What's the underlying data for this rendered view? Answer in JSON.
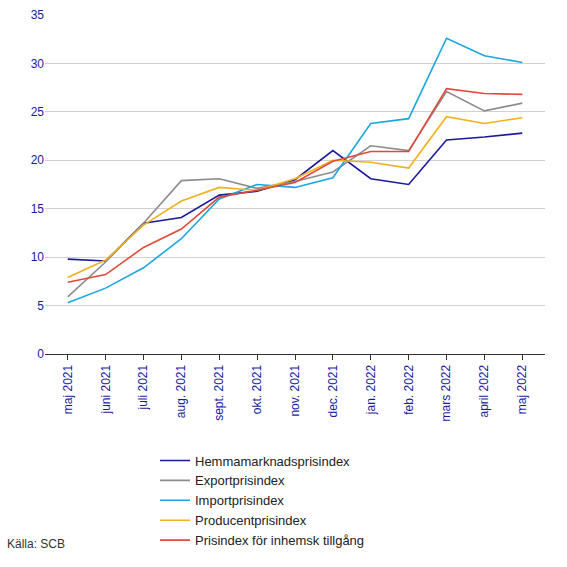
{
  "chart_data": {
    "type": "line",
    "categories": [
      "maj 2021",
      "juni 2021",
      "juli 2021",
      "aug. 2021",
      "sept. 2021",
      "okt. 2021",
      "nov. 2021",
      "dec. 2021",
      "jan. 2022",
      "feb. 2022",
      "mars 2022",
      "april 2022",
      "maj 2022"
    ],
    "series": [
      {
        "name": "Hemmamarknadsprisindex",
        "color": "#1a1a9e",
        "values": [
          9.8,
          9.6,
          13.5,
          14.1,
          16.4,
          16.8,
          18.0,
          21.0,
          18.1,
          17.5,
          22.1,
          22.4,
          22.8
        ]
      },
      {
        "name": "Exportprisindex",
        "color": "#8c8c8c",
        "values": [
          5.9,
          9.5,
          13.5,
          17.9,
          18.1,
          17.1,
          17.8,
          18.8,
          21.5,
          21.0,
          27.1,
          25.1,
          25.9
        ]
      },
      {
        "name": "Importprisindex",
        "color": "#1ba6e0",
        "values": [
          5.3,
          6.8,
          8.9,
          11.9,
          16.0,
          17.5,
          17.2,
          18.2,
          23.8,
          24.3,
          32.6,
          30.8,
          30.1
        ]
      },
      {
        "name": "Producentprisindex",
        "color": "#f2b11b",
        "values": [
          7.9,
          9.7,
          13.3,
          15.8,
          17.2,
          16.9,
          18.1,
          20.0,
          19.8,
          19.2,
          24.5,
          23.8,
          24.4
        ]
      },
      {
        "name": "Prisindex för inhemsk tillgång",
        "color": "#e04a3a",
        "values": [
          7.4,
          8.2,
          11.0,
          12.9,
          16.2,
          16.9,
          17.7,
          19.9,
          20.9,
          20.9,
          27.4,
          26.9,
          26.8
        ]
      }
    ],
    "ylim": [
      0,
      35
    ],
    "yticks": [
      0,
      5,
      10,
      15,
      20,
      25,
      30,
      35
    ],
    "grid": true,
    "legend": "bottom",
    "annotations": [
      {
        "text": "Källa: SCB"
      }
    ]
  }
}
